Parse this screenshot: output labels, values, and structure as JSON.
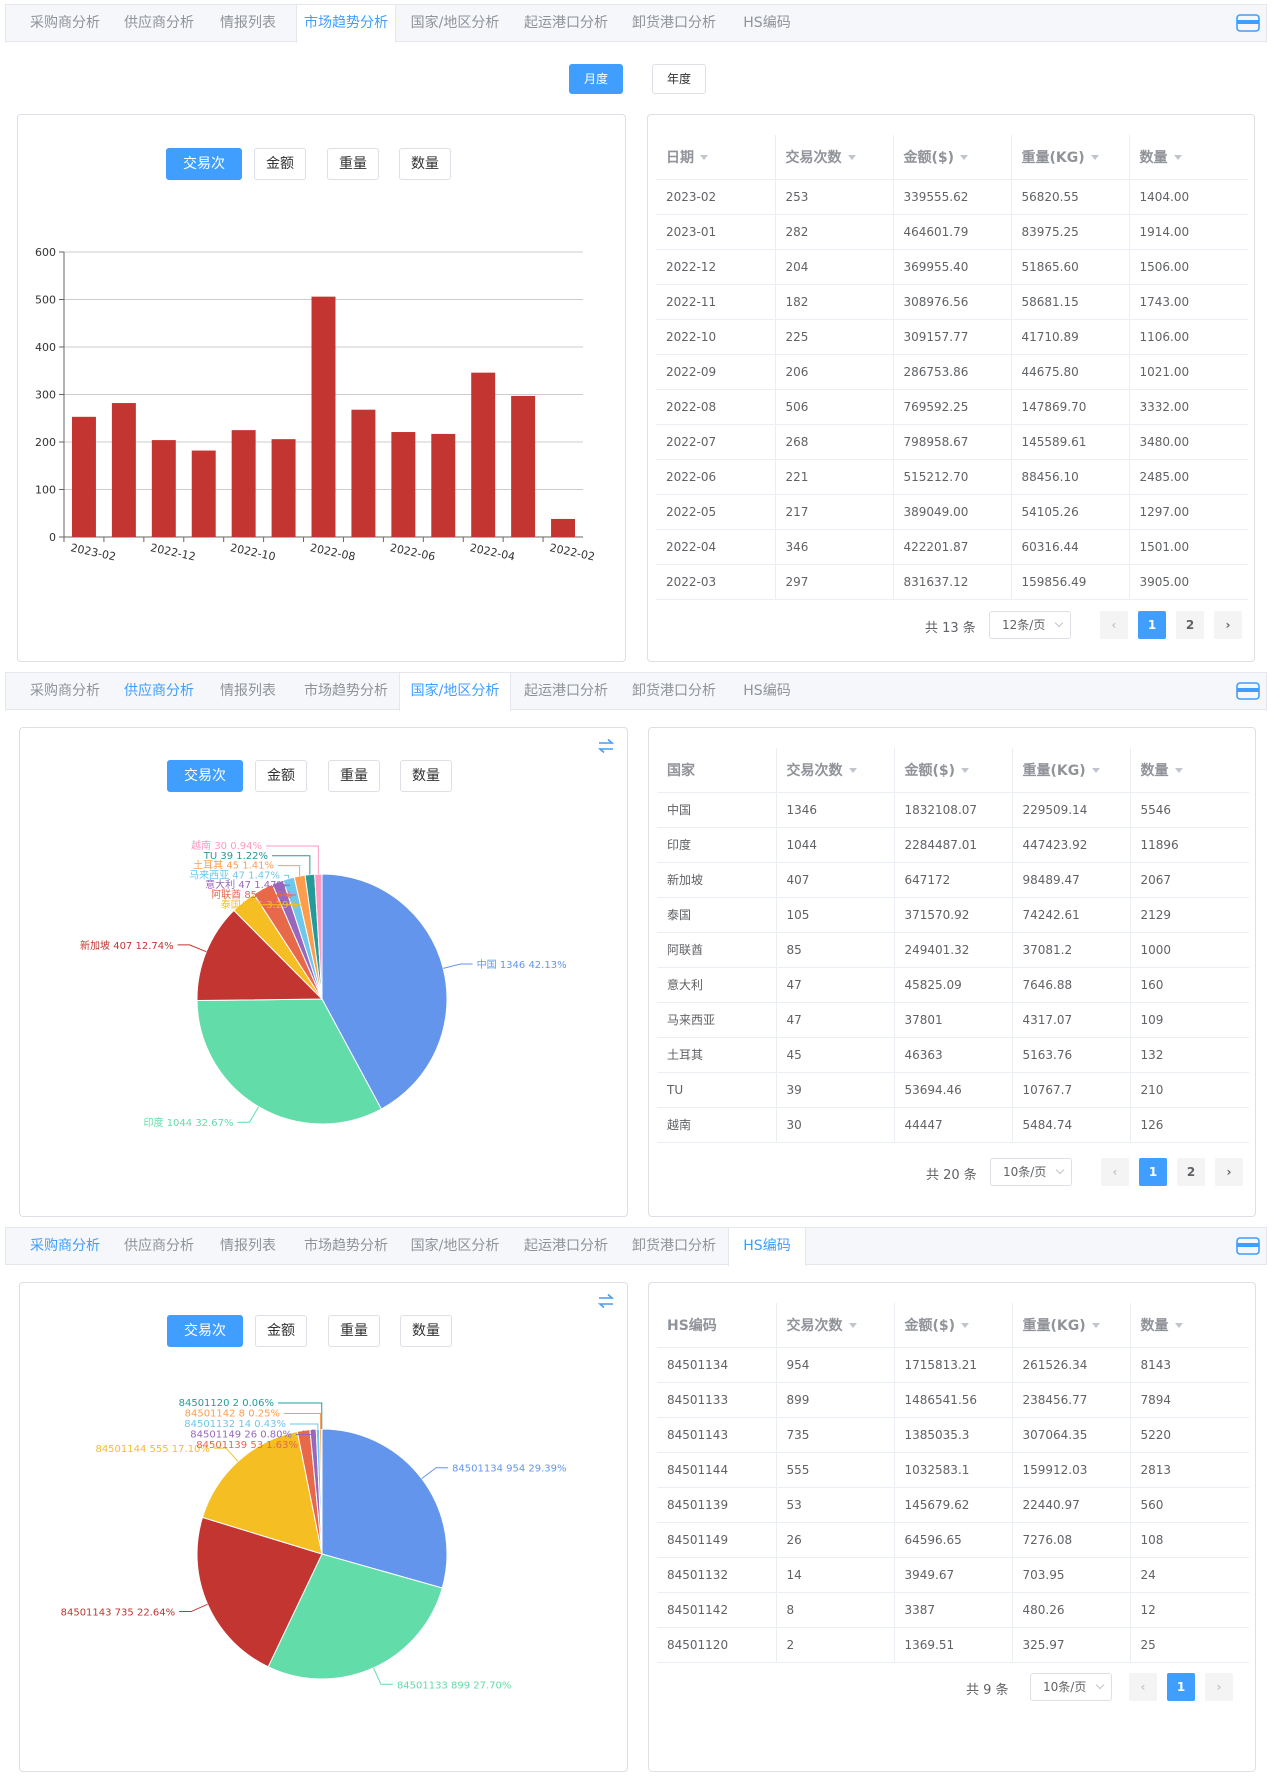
{
  "tabs": [
    "采购商分析",
    "供应商分析",
    "情报列表",
    "市场趋势分析",
    "国家/地区分析",
    "起运港口分析",
    "卸货港口分析",
    "HS编码"
  ],
  "metrics": [
    "交易次数",
    "金额",
    "重量",
    "数量"
  ],
  "colors": {
    "accent": "#409eff",
    "bar": "#c23531"
  },
  "section1": {
    "active_tab": "市场趋势分析",
    "period_buttons": [
      "月度",
      "年度"
    ],
    "active_metric": "交易次数",
    "columns": [
      "日期",
      "交易次数",
      "金额($)",
      "重量(KG)",
      "数量"
    ],
    "rows": [
      [
        "2023-02",
        "253",
        "339555.62",
        "56820.55",
        "1404.00"
      ],
      [
        "2023-01",
        "282",
        "464601.79",
        "83975.25",
        "1914.00"
      ],
      [
        "2022-12",
        "204",
        "369955.40",
        "51865.60",
        "1506.00"
      ],
      [
        "2022-11",
        "182",
        "308976.56",
        "58681.15",
        "1743.00"
      ],
      [
        "2022-10",
        "225",
        "309157.77",
        "41710.89",
        "1106.00"
      ],
      [
        "2022-09",
        "206",
        "286753.86",
        "44675.80",
        "1021.00"
      ],
      [
        "2022-08",
        "506",
        "769592.25",
        "147869.70",
        "3332.00"
      ],
      [
        "2022-07",
        "268",
        "798958.67",
        "145589.61",
        "3480.00"
      ],
      [
        "2022-06",
        "221",
        "515212.70",
        "88456.10",
        "2485.00"
      ],
      [
        "2022-05",
        "217",
        "389049.00",
        "54105.26",
        "1297.00"
      ],
      [
        "2022-04",
        "346",
        "422201.87",
        "60316.44",
        "1501.00"
      ],
      [
        "2022-03",
        "297",
        "831637.12",
        "159856.49",
        "3905.00"
      ]
    ],
    "pager": {
      "total": "共 13 条",
      "size": "12条/页",
      "pages": [
        "1",
        "2"
      ],
      "prev": "‹",
      "next": "›"
    }
  },
  "section2": {
    "active_tab": "国家/地区分析",
    "active_metric": "交易次数",
    "columns": [
      "国家",
      "交易次数",
      "金额($)",
      "重量(KG)",
      "数量"
    ],
    "rows": [
      [
        "中国",
        "1346",
        "1832108.07",
        "229509.14",
        "5546"
      ],
      [
        "印度",
        "1044",
        "2284487.01",
        "447423.92",
        "11896"
      ],
      [
        "新加坡",
        "407",
        "647172",
        "98489.47",
        "2067"
      ],
      [
        "泰国",
        "105",
        "371570.92",
        "74242.61",
        "2129"
      ],
      [
        "阿联酋",
        "85",
        "249401.32",
        "37081.2",
        "1000"
      ],
      [
        "意大利",
        "47",
        "45825.09",
        "7646.88",
        "160"
      ],
      [
        "马来西亚",
        "47",
        "37801",
        "4317.07",
        "109"
      ],
      [
        "土耳其",
        "45",
        "46363",
        "5163.76",
        "132"
      ],
      [
        "TU",
        "39",
        "53694.46",
        "10767.7",
        "210"
      ],
      [
        "越南",
        "30",
        "44447",
        "5484.74",
        "126"
      ]
    ],
    "pager": {
      "total": "共 20 条",
      "size": "10条/页",
      "pages": [
        "1",
        "2"
      ],
      "prev": "‹",
      "next": "›"
    }
  },
  "section3": {
    "active_tab": "HS编码",
    "active_metric": "交易次数",
    "columns": [
      "HS编码",
      "交易次数",
      "金额($)",
      "重量(KG)",
      "数量"
    ],
    "rows": [
      [
        "84501134",
        "954",
        "1715813.21",
        "261526.34",
        "8143"
      ],
      [
        "84501133",
        "899",
        "1486541.56",
        "238456.77",
        "7894"
      ],
      [
        "84501143",
        "735",
        "1385035.3",
        "307064.35",
        "5220"
      ],
      [
        "84501144",
        "555",
        "1032583.1",
        "159912.03",
        "2813"
      ],
      [
        "84501139",
        "53",
        "145679.62",
        "22440.97",
        "560"
      ],
      [
        "84501149",
        "26",
        "64596.65",
        "7276.08",
        "108"
      ],
      [
        "84501132",
        "14",
        "3949.67",
        "703.95",
        "24"
      ],
      [
        "84501142",
        "8",
        "3387",
        "480.26",
        "12"
      ],
      [
        "84501120",
        "2",
        "1369.51",
        "325.97",
        "25"
      ]
    ],
    "pager": {
      "total": "共 9 条",
      "size": "10条/页",
      "pages": [
        "1"
      ],
      "prev": "‹",
      "next": "›"
    }
  },
  "chart_data": [
    {
      "type": "bar",
      "categories": [
        "2023-02",
        "2023-01",
        "2022-12",
        "2022-11",
        "2022-10",
        "2022-09",
        "2022-08",
        "2022-07",
        "2022-06",
        "2022-05",
        "2022-04",
        "2022-03",
        "2022-02"
      ],
      "x_tick_labels": [
        "2023-02",
        "2022-12",
        "2022-10",
        "2022-08",
        "2022-06",
        "2022-04",
        "2022-02"
      ],
      "values": [
        253,
        282,
        204,
        182,
        225,
        206,
        506,
        268,
        221,
        217,
        346,
        297,
        38
      ],
      "ylim": [
        0,
        600
      ],
      "y_ticks": [
        "0",
        "100",
        "200",
        "300",
        "400",
        "500",
        "600"
      ],
      "color": "#c23531",
      "grid": true
    },
    {
      "type": "pie",
      "labels": [
        "中国",
        "印度",
        "新加坡",
        "泰国",
        "阿联酋",
        "意大利",
        "马来西亚",
        "土耳其",
        "TU",
        "越南"
      ],
      "values": [
        1346,
        1044,
        407,
        105,
        85,
        47,
        47,
        45,
        39,
        30
      ],
      "percents": [
        "42.13%",
        "32.67%",
        "12.74%",
        "3.29%",
        "2.66%",
        "1.47%",
        "1.47%",
        "1.41%",
        "1.22%",
        "0.94%"
      ],
      "colors": [
        "#6495ed",
        "#62dca9",
        "#c23531",
        "#f5be23",
        "#e8684a",
        "#9867bc",
        "#6dc8ec",
        "#ff9d4d",
        "#269a99",
        "#ff99c3"
      ]
    },
    {
      "type": "pie",
      "labels": [
        "84501134",
        "84501133",
        "84501143",
        "84501144",
        "84501139",
        "84501149",
        "84501132",
        "84501142",
        "84501120"
      ],
      "values": [
        954,
        899,
        735,
        555,
        53,
        26,
        14,
        8,
        2
      ],
      "percents": [
        "29.39%",
        "27.70%",
        "22.64%",
        "17.10%",
        "1.63%",
        "0.80%",
        "0.43%",
        "0.25%",
        "0.06%"
      ],
      "colors": [
        "#6495ed",
        "#62dca9",
        "#c23531",
        "#f5be23",
        "#e8684a",
        "#9867bc",
        "#6dc8ec",
        "#ff9d4d",
        "#269a99"
      ]
    }
  ]
}
